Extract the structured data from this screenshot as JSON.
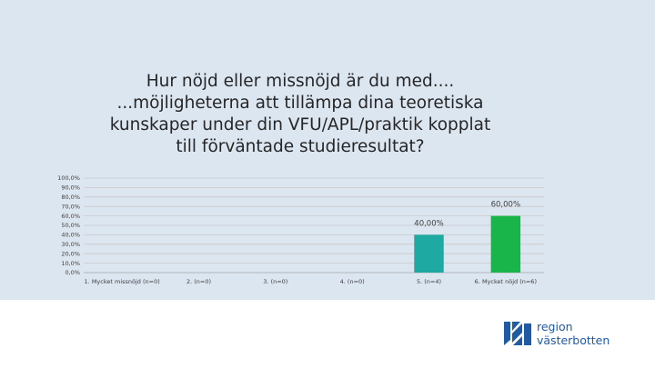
{
  "chart_data": {
    "type": "bar",
    "title": [
      "Hur nöjd eller missnöjd är du med....",
      "...möjligheterna att tillämpa dina teoretiska",
      "kunskaper under din VFU/APL/praktik kopplat",
      "till förväntade studieresultat?"
    ],
    "categories": [
      "1. Mycket missnöjd (n=0)",
      "2. (n=0)",
      "3. (n=0)",
      "4. (n=0)",
      "5. (n=4)",
      "6. Mycket nöjd (n=6)"
    ],
    "values": [
      0,
      0,
      0,
      0,
      40,
      60
    ],
    "data_labels": [
      "",
      "",
      "",
      "",
      "40,00%",
      "60,00%"
    ],
    "yticks": [
      "0,0%",
      "10,0%",
      "20,0%",
      "30,0%",
      "40,0%",
      "50,0%",
      "60,0%",
      "70,0%",
      "80,0%",
      "90,0%",
      "100,0%"
    ],
    "ylim": [
      0,
      100
    ],
    "xlabel": "",
    "ylabel": "",
    "grid": true,
    "legend": "none",
    "bar_colors": [
      "#4bacc6",
      "#4bacc6",
      "#4bacc6",
      "#4bacc6",
      "#1eaaa3",
      "#19b54a"
    ]
  },
  "logo": {
    "line1": "region",
    "line2": "västerbotten",
    "color": "#1f5aa5"
  },
  "colors": {
    "background": "#dce6f1",
    "gridline": "#c9c9c9"
  }
}
